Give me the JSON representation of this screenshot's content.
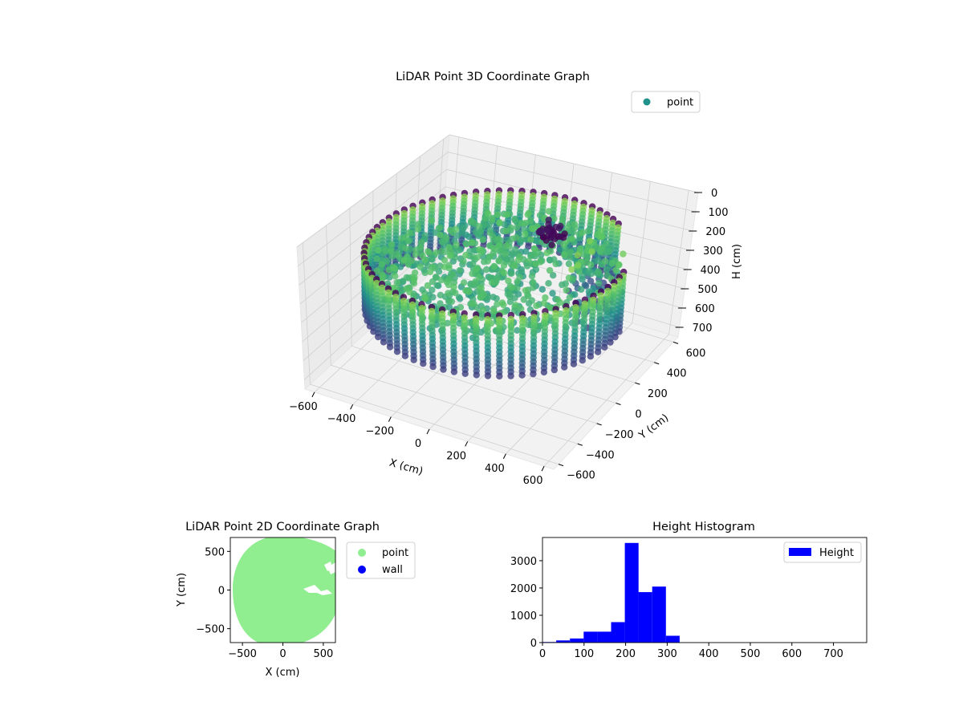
{
  "chart_data": [
    {
      "type": "scatter",
      "projection": "3d",
      "title": "LiDAR Point 3D Coordinate Graph",
      "xlabel": "X (cm)",
      "ylabel": "Y (cm)",
      "zlabel": "H (cm)",
      "xlim": [
        -650,
        650
      ],
      "ylim": [
        -650,
        650
      ],
      "zlim": [
        0,
        750
      ],
      "zaxis_inverted": true,
      "xticks": [
        "−600",
        "−400",
        "−200",
        "0",
        "200",
        "400",
        "600"
      ],
      "yticks": [
        "−600",
        "−400",
        "−200",
        "0",
        "200",
        "400",
        "600"
      ],
      "zticks": [
        "0",
        "100",
        "200",
        "300",
        "400",
        "500",
        "600",
        "700"
      ],
      "grid": true,
      "colormap": "viridis",
      "legend": {
        "position": "upper-right",
        "entries": [
          {
            "label": "point",
            "color": "#21918c"
          }
        ]
      },
      "series": [
        {
          "name": "point",
          "description_points": [
            {
              "x": 620,
              "y": 0,
              "h": 250
            },
            {
              "x": 440,
              "y": 440,
              "h": 250
            },
            {
              "x": 0,
              "y": 620,
              "h": 250
            },
            {
              "x": -440,
              "y": 440,
              "h": 250
            },
            {
              "x": -620,
              "y": 0,
              "h": 250
            },
            {
              "x": -440,
              "y": -440,
              "h": 250
            },
            {
              "x": 0,
              "y": -620,
              "h": 250
            },
            {
              "x": 440,
              "y": -440,
              "h": 250
            },
            {
              "x": 100,
              "y": 200,
              "h": 130
            },
            {
              "x": 150,
              "y": 150,
              "h": 140
            },
            {
              "x": 300,
              "y": 100,
              "h": 450
            },
            {
              "x": -100,
              "y": 0,
              "h": 300
            },
            {
              "x": 50,
              "y": -50,
              "h": 320
            }
          ]
        }
      ]
    },
    {
      "type": "scatter",
      "title": "LiDAR Point 2D Coordinate Graph",
      "xlabel": "X (cm)",
      "ylabel": "Y (cm)",
      "xlim": [
        -650,
        650
      ],
      "ylim": [
        -680,
        680
      ],
      "xticks": [
        "−500",
        "0",
        "500"
      ],
      "yticks": [
        "−500",
        "0",
        "500"
      ],
      "legend": {
        "position": "outside-right",
        "entries": [
          {
            "label": "point",
            "color": "#90ee90"
          },
          {
            "label": "wall",
            "color": "#0000ff"
          }
        ]
      },
      "series": [
        {
          "name": "point",
          "color": "#90ee90",
          "region": {
            "type": "disc",
            "cx": 0,
            "cy": 0,
            "r": 620
          }
        },
        {
          "name": "wall",
          "color": "#0000ff",
          "points": []
        }
      ]
    },
    {
      "type": "bar",
      "subtype": "histogram",
      "title": "Height Histogram",
      "xlabel": "",
      "ylabel": "",
      "xlim": [
        0,
        780
      ],
      "ylim": [
        0,
        3850
      ],
      "xticks": [
        "0",
        "100",
        "200",
        "300",
        "400",
        "500",
        "600",
        "700"
      ],
      "yticks": [
        "0",
        "1000",
        "2000",
        "3000"
      ],
      "color": "#0000ff",
      "legend": {
        "position": "upper-right",
        "entries": [
          {
            "label": "Height",
            "color": "#0000ff"
          }
        ]
      },
      "bin_edges": [
        0,
        33,
        66,
        99,
        132,
        165,
        198,
        231,
        264,
        297,
        330,
        363,
        396,
        429,
        462,
        495,
        528,
        561,
        594,
        627,
        660,
        693,
        726,
        759
      ],
      "values": [
        20,
        80,
        150,
        400,
        400,
        750,
        3650,
        1850,
        2050,
        250,
        0,
        0,
        0,
        0,
        0,
        0,
        0,
        0,
        0,
        0,
        0,
        0,
        0
      ]
    }
  ]
}
